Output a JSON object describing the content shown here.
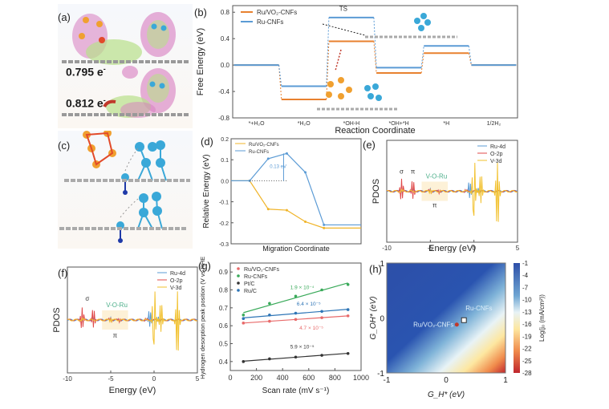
{
  "panels": {
    "a": {
      "label": "(a)",
      "charge1": "0.795 e",
      "charge2": "0.812 e",
      "sup": "-"
    },
    "c": {
      "label": "(c)"
    }
  },
  "chart_data": [
    {
      "id": "b",
      "panel_label": "(b)",
      "type": "line",
      "title": "",
      "xlabel": "Reaction Coordinate",
      "ylabel": "Free Energy (eV)",
      "ylim": [
        -0.8,
        0.9
      ],
      "yticks": [
        "0.8",
        "0.4",
        "0.0",
        "-0.4",
        "-0.8"
      ],
      "ytick_values": [
        0.8,
        0.4,
        0.0,
        -0.4,
        -0.8
      ],
      "categories": [
        "*+H2O",
        "*H2O",
        "*OH-H",
        "*OH+*H",
        "*H",
        "1/2H2"
      ],
      "category_labels": [
        "*+H₂O",
        "*H₂O",
        "*OH-H",
        "*OH+*H",
        "*H",
        "1/2H₂"
      ],
      "annotation": "TS",
      "legend_position": "top-left",
      "series": [
        {
          "name": "Ru/VO₂-CNFs",
          "color": "#e8812f",
          "values": [
            0.0,
            -0.52,
            0.36,
            -0.12,
            0.18,
            0.0
          ]
        },
        {
          "name": "Ru-CNFs",
          "color": "#5b9bd5",
          "values": [
            0.0,
            -0.32,
            0.72,
            -0.04,
            0.29,
            0.0
          ]
        }
      ]
    },
    {
      "id": "d",
      "panel_label": "(d)",
      "type": "line",
      "xlabel": "Migration Coordinate",
      "ylabel": "Relative Energy (eV)",
      "ylim": [
        -0.3,
        0.2
      ],
      "yticks": [
        "0.2",
        "0.1",
        "0.0",
        "-0.1",
        "-0.2",
        "-0.3"
      ],
      "ytick_values": [
        0.2,
        0.1,
        0.0,
        -0.1,
        -0.2,
        -0.3
      ],
      "annotation": "0.13 eV",
      "legend_position": "top-left",
      "series": [
        {
          "name": "Ru/VO₂-CNFs",
          "color": "#f0b429",
          "x": [
            0,
            1,
            2,
            3,
            4,
            5,
            6,
            7
          ],
          "values": [
            0.0,
            0.0,
            -0.135,
            -0.14,
            -0.195,
            -0.225,
            -0.225,
            -0.225
          ]
        },
        {
          "name": "Ru-CNFs",
          "color": "#5b9bd5",
          "x": [
            0,
            1,
            2,
            3,
            4,
            5,
            6,
            7
          ],
          "values": [
            0.0,
            0.0,
            0.105,
            0.13,
            0.04,
            -0.21,
            -0.21,
            -0.21
          ]
        }
      ]
    },
    {
      "id": "e",
      "panel_label": "(e)",
      "type": "line",
      "xlabel": "Energy (eV)",
      "ylabel": "PDOS",
      "xlim": [
        -10,
        5
      ],
      "xticks": [
        "-10",
        "-5",
        "0",
        "5"
      ],
      "xtick_values": [
        -10,
        -5,
        0,
        5
      ],
      "annotations": [
        "σ",
        "π",
        "V-O-Ru",
        "π"
      ],
      "legend_position": "top-right",
      "series": [
        {
          "name": "Ru-4d",
          "color": "#5b9bd5"
        },
        {
          "name": "O-2p",
          "color": "#e04a4a"
        },
        {
          "name": "V-3d",
          "color": "#f2c12e"
        }
      ]
    },
    {
      "id": "f",
      "panel_label": "(f)",
      "type": "line",
      "xlabel": "Energy (eV)",
      "ylabel": "PDOS",
      "xlim": [
        -10,
        5
      ],
      "xticks": [
        "-10",
        "-5",
        "0",
        "5"
      ],
      "xtick_values": [
        -10,
        -5,
        0,
        5
      ],
      "annotations": [
        "σ",
        "V-O-Ru",
        "π"
      ],
      "legend_position": "top-right",
      "series": [
        {
          "name": "Ru-4d",
          "color": "#5b9bd5"
        },
        {
          "name": "O-2p",
          "color": "#e04a4a"
        },
        {
          "name": "V-3d",
          "color": "#f2c12e"
        }
      ]
    },
    {
      "id": "g",
      "panel_label": "(g)",
      "type": "scatter",
      "xlabel": "Scan rate (mV s⁻¹)",
      "ylabel": "Hydrogen desorption peak position (V vs RHE)",
      "xlim": [
        0,
        1000
      ],
      "ylim": [
        0.35,
        0.95
      ],
      "xticks": [
        "0",
        "200",
        "400",
        "600",
        "800",
        "1000"
      ],
      "xtick_values": [
        0,
        200,
        400,
        600,
        800,
        1000
      ],
      "yticks": [
        "0.9",
        "0.8",
        "0.7",
        "0.6",
        "0.5",
        "0.4"
      ],
      "ytick_values": [
        0.9,
        0.8,
        0.7,
        0.6,
        0.5,
        0.4
      ],
      "legend_position": "top-left",
      "x": [
        100,
        300,
        500,
        700,
        900
      ],
      "series": [
        {
          "name": "Ru/VO₂-CNFs",
          "color": "#e86a6a",
          "values": [
            0.615,
            0.625,
            0.635,
            0.645,
            0.655
          ],
          "slope_label": "4.7 × 10⁻⁵"
        },
        {
          "name": "Ru-CNFs",
          "color": "#3aaa5a",
          "values": [
            0.66,
            0.725,
            0.765,
            0.8,
            0.83
          ],
          "slope_label": "1.9 × 10⁻⁴"
        },
        {
          "name": "Pt/C",
          "color": "#333333",
          "values": [
            0.4,
            0.415,
            0.425,
            0.435,
            0.445
          ],
          "slope_label": "5.9 × 10⁻⁵"
        },
        {
          "name": "Ru/C",
          "color": "#2e75b6",
          "values": [
            0.64,
            0.66,
            0.67,
            0.68,
            0.69
          ],
          "slope_label": "6.4 × 10⁻⁵"
        }
      ]
    },
    {
      "id": "h",
      "panel_label": "(h)",
      "type": "heatmap",
      "xlabel": "G_H* (eV)",
      "ylabel": "G_OH* (eV)",
      "xlim": [
        -1,
        1
      ],
      "ylim": [
        -1,
        1
      ],
      "xticks": [
        "-1",
        "0",
        "1"
      ],
      "yticks": [
        "1",
        "0",
        "-1"
      ],
      "colorbar_label": "Log(j₀ (mA/cm²))",
      "colorbar_ticks": [
        "-1",
        "-4",
        "-7",
        "-10",
        "-13",
        "-16",
        "-19",
        "-22",
        "-25",
        "-28"
      ],
      "colorbar_range": [
        -28,
        -1
      ],
      "points": [
        {
          "name": "Ru-CNFs",
          "x": 0.3,
          "y": -0.04
        },
        {
          "name": "Ru/VO₂-CNFs",
          "x": 0.18,
          "y": -0.12
        }
      ]
    }
  ]
}
